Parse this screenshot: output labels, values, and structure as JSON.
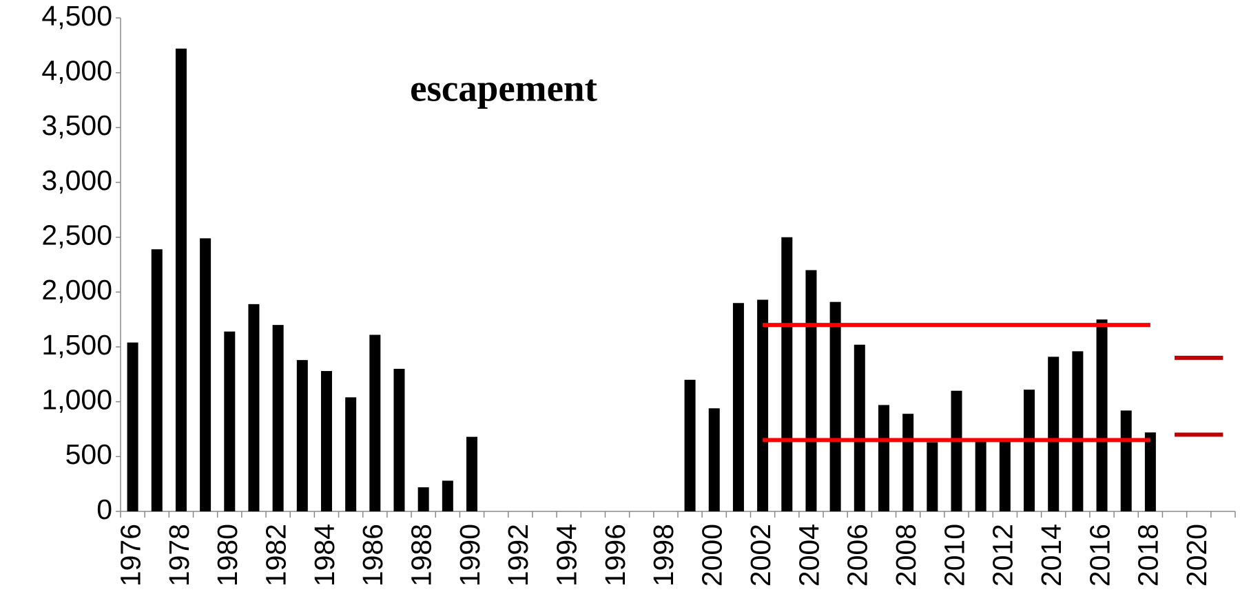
{
  "chart_data": {
    "type": "bar",
    "annotation": "escapement",
    "categories": [
      "1976",
      null,
      "1978",
      null,
      "1980",
      null,
      "1982",
      null,
      "1984",
      null,
      "1986",
      null,
      "1988",
      null,
      "1990",
      null,
      "1992",
      null,
      "1994",
      null,
      "1996",
      null,
      "1998",
      null,
      "2000",
      null,
      "2002",
      null,
      "2004",
      null,
      "2006",
      null,
      "2008",
      null,
      "2010",
      null,
      "2012",
      null,
      "2014",
      null,
      "2016",
      null,
      "2018",
      null,
      "2020",
      null
    ],
    "values": [
      1540,
      2390,
      4220,
      2490,
      1640,
      1890,
      1700,
      1380,
      1280,
      1040,
      1610,
      1300,
      220,
      280,
      680,
      null,
      null,
      null,
      null,
      null,
      null,
      null,
      null,
      1200,
      940,
      1900,
      1930,
      2500,
      2200,
      1910,
      1520,
      970,
      890,
      630,
      1100,
      640,
      640,
      1110,
      1410,
      1460,
      1750,
      920,
      720,
      null,
      null,
      null
    ],
    "color": "#000000",
    "reference_lines": [
      {
        "value": 1700,
        "color": "#ff0000"
      },
      {
        "value": 650,
        "color": "#ff0000"
      },
      {
        "value": 1400,
        "color": "#c00000"
      },
      {
        "value": 700,
        "color": "#c00000"
      }
    ],
    "ylim": [
      0,
      4500
    ],
    "yticks": [
      0,
      {
        "value": 500,
        "label": "500"
      },
      {
        "value": 1000,
        "label": "1,000"
      },
      {
        "value": 1500,
        "label": "1,500"
      },
      {
        "value": 2000,
        "label": "2,000"
      },
      {
        "value": 2500,
        "label": "2,500"
      },
      {
        "value": 3000,
        "label": "3,000"
      },
      {
        "value": 3500,
        "label": "3,500"
      },
      {
        "value": 4000,
        "label": "4,000"
      },
      {
        "value": 4500,
        "label": "4,500"
      }
    ],
    "grid": false
  }
}
